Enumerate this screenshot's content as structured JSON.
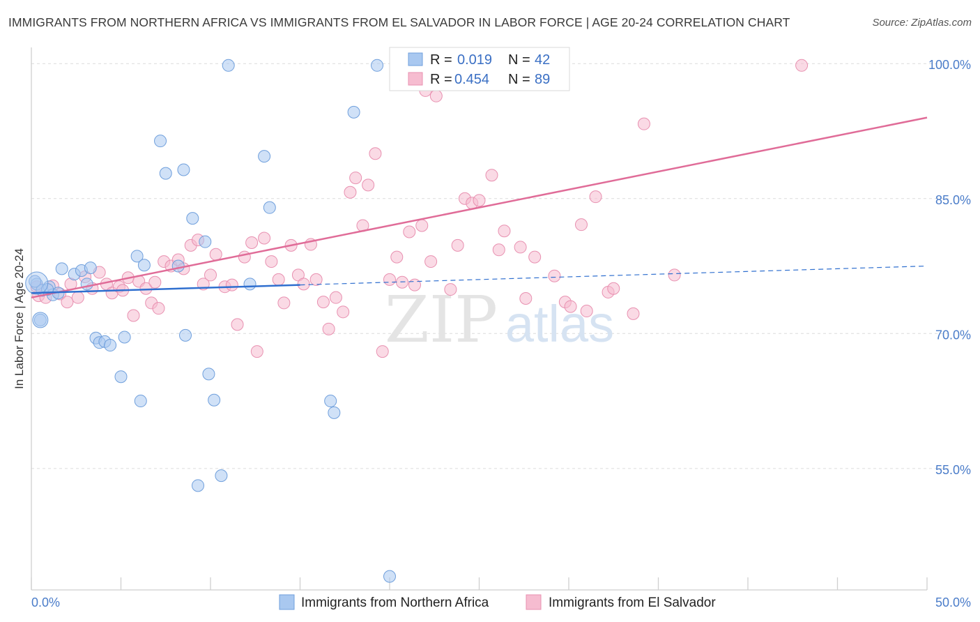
{
  "header": {
    "title": "IMMIGRANTS FROM NORTHERN AFRICA VS IMMIGRANTS FROM EL SALVADOR IN LABOR FORCE | AGE 20-24 CORRELATION CHART",
    "source": "Source: ZipAtlas.com"
  },
  "watermark": {
    "zip": "ZIP",
    "atlas": "atlas"
  },
  "colors": {
    "blue_fill": "#a9c8f0",
    "blue_stroke": "#6f9fdc",
    "blue_line": "#2f6fcf",
    "pink_fill": "#f6bcd0",
    "pink_stroke": "#e890b0",
    "pink_line": "#e06c98",
    "grid": "#dcdcdc",
    "tick_text": "#4a7cc9"
  },
  "chart_data": {
    "type": "scatter",
    "ylabel": "In Labor Force | Age 20-24",
    "x_ticks": [
      "0.0%",
      "50.0%"
    ],
    "y_ticks": [
      "55.0%",
      "70.0%",
      "85.0%",
      "100.0%"
    ],
    "xlim": [
      0,
      50
    ],
    "ylim": [
      41.5,
      101.8
    ],
    "legend": {
      "rows": [
        {
          "r_label": "R =",
          "r_value": "0.019",
          "n_label": "N =",
          "n_value": "42"
        },
        {
          "r_label": "R =",
          "r_value": "0.454",
          "n_label": "N =",
          "n_value": "89"
        }
      ]
    },
    "series": [
      {
        "name": "Immigrants from Northern Africa",
        "color": "#a9c8f0",
        "trend": {
          "x0": 0,
          "y0": 74.5,
          "x1": 50,
          "y1": 77.5,
          "solid_until_x": 15
        },
        "points": [
          [
            0.3,
            75.5
          ],
          [
            0.5,
            71.5
          ],
          [
            0.6,
            74.8
          ],
          [
            1.0,
            75.2
          ],
          [
            1.2,
            74.3
          ],
          [
            1.5,
            74.5
          ],
          [
            1.7,
            77.2
          ],
          [
            2.4,
            76.6
          ],
          [
            2.8,
            77.0
          ],
          [
            3.1,
            75.5
          ],
          [
            3.3,
            77.3
          ],
          [
            3.6,
            69.5
          ],
          [
            3.8,
            69.0
          ],
          [
            4.1,
            69.1
          ],
          [
            4.4,
            68.7
          ],
          [
            5.0,
            65.2
          ],
          [
            5.2,
            69.6
          ],
          [
            5.9,
            78.6
          ],
          [
            6.1,
            62.5
          ],
          [
            6.3,
            77.6
          ],
          [
            7.2,
            91.4
          ],
          [
            7.5,
            87.8
          ],
          [
            8.2,
            77.5
          ],
          [
            8.5,
            88.2
          ],
          [
            8.6,
            69.8
          ],
          [
            9.0,
            82.8
          ],
          [
            9.3,
            53.1
          ],
          [
            9.7,
            80.2
          ],
          [
            9.9,
            65.5
          ],
          [
            10.2,
            62.6
          ],
          [
            10.6,
            54.2
          ],
          [
            11.0,
            99.8
          ],
          [
            12.2,
            75.5
          ],
          [
            13.0,
            89.7
          ],
          [
            13.3,
            84.0
          ],
          [
            16.7,
            62.5
          ],
          [
            16.9,
            61.2
          ],
          [
            18.0,
            94.6
          ],
          [
            19.3,
            99.8
          ],
          [
            20.0,
            43.0
          ],
          [
            0.2,
            75.8
          ],
          [
            0.9,
            74.9
          ]
        ]
      },
      {
        "name": "Immigrants from El Salvador",
        "color": "#f6bcd0",
        "trend": {
          "x0": 0,
          "y0": 74.0,
          "x1": 50,
          "y1": 94.0
        },
        "points": [
          [
            0.4,
            74.2
          ],
          [
            0.8,
            74.0
          ],
          [
            1.2,
            75.3
          ],
          [
            1.6,
            74.4
          ],
          [
            2.0,
            73.5
          ],
          [
            2.2,
            75.5
          ],
          [
            2.6,
            74.0
          ],
          [
            3.0,
            76.3
          ],
          [
            3.4,
            75.0
          ],
          [
            3.8,
            76.8
          ],
          [
            4.2,
            75.5
          ],
          [
            4.5,
            74.5
          ],
          [
            4.9,
            75.2
          ],
          [
            5.1,
            74.8
          ],
          [
            5.4,
            76.2
          ],
          [
            5.7,
            72.0
          ],
          [
            6.0,
            75.8
          ],
          [
            6.4,
            75.0
          ],
          [
            6.7,
            73.4
          ],
          [
            6.9,
            75.7
          ],
          [
            7.1,
            72.8
          ],
          [
            7.4,
            78.0
          ],
          [
            7.8,
            77.5
          ],
          [
            8.2,
            78.2
          ],
          [
            8.5,
            77.2
          ],
          [
            8.9,
            79.8
          ],
          [
            9.3,
            80.4
          ],
          [
            9.6,
            75.5
          ],
          [
            10.0,
            76.5
          ],
          [
            10.3,
            78.8
          ],
          [
            10.8,
            75.2
          ],
          [
            11.2,
            75.4
          ],
          [
            11.5,
            71.0
          ],
          [
            11.9,
            78.5
          ],
          [
            12.3,
            80.1
          ],
          [
            12.6,
            68.0
          ],
          [
            13.0,
            80.6
          ],
          [
            13.4,
            78.0
          ],
          [
            13.8,
            76.0
          ],
          [
            14.1,
            73.4
          ],
          [
            14.5,
            79.8
          ],
          [
            14.9,
            76.5
          ],
          [
            15.2,
            75.5
          ],
          [
            15.6,
            79.9
          ],
          [
            15.9,
            76.0
          ],
          [
            16.3,
            73.5
          ],
          [
            16.6,
            70.5
          ],
          [
            17.0,
            74.0
          ],
          [
            17.4,
            72.4
          ],
          [
            17.8,
            85.7
          ],
          [
            18.1,
            87.3
          ],
          [
            18.5,
            82.0
          ],
          [
            18.8,
            86.5
          ],
          [
            19.2,
            90.0
          ],
          [
            19.6,
            68.0
          ],
          [
            20.0,
            76.0
          ],
          [
            20.4,
            78.5
          ],
          [
            20.7,
            75.7
          ],
          [
            21.1,
            81.3
          ],
          [
            21.4,
            75.4
          ],
          [
            21.8,
            82.0
          ],
          [
            22.0,
            97.0
          ],
          [
            22.3,
            78.0
          ],
          [
            22.6,
            96.4
          ],
          [
            23.4,
            74.9
          ],
          [
            23.8,
            79.8
          ],
          [
            24.2,
            85.0
          ],
          [
            24.6,
            84.5
          ],
          [
            25.0,
            84.8
          ],
          [
            25.4,
            99.8
          ],
          [
            25.7,
            87.6
          ],
          [
            26.1,
            79.3
          ],
          [
            26.4,
            81.4
          ],
          [
            27.3,
            79.6
          ],
          [
            27.6,
            73.9
          ],
          [
            28.1,
            78.5
          ],
          [
            29.2,
            76.4
          ],
          [
            29.8,
            73.5
          ],
          [
            30.1,
            73.0
          ],
          [
            30.7,
            82.1
          ],
          [
            31.0,
            72.5
          ],
          [
            31.5,
            85.2
          ],
          [
            32.2,
            74.6
          ],
          [
            32.5,
            75.0
          ],
          [
            33.6,
            72.2
          ],
          [
            34.2,
            93.3
          ],
          [
            35.9,
            76.5
          ],
          [
            43.0,
            99.8
          ],
          [
            0.3,
            75.2
          ]
        ]
      }
    ]
  }
}
